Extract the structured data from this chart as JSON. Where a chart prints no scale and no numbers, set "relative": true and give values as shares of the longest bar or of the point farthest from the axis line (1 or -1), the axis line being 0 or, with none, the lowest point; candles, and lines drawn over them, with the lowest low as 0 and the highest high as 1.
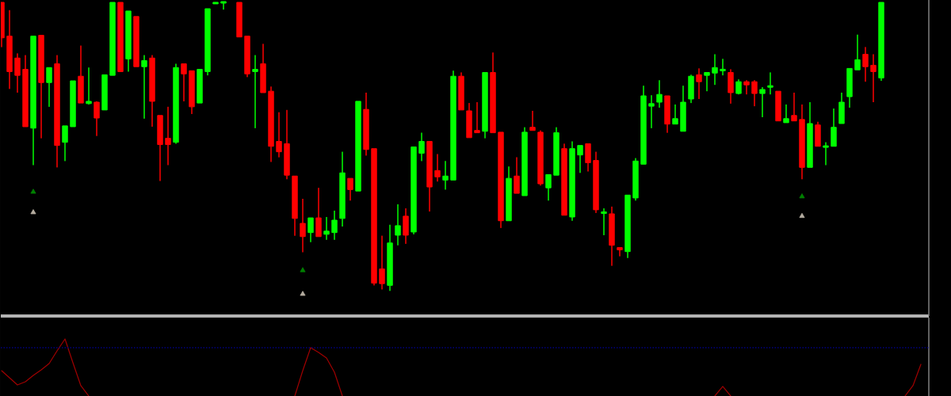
{
  "chart_data": [
    {
      "type": "candlestick",
      "relative": true,
      "categories": [
        null,
        null,
        null,
        null,
        null,
        null,
        null,
        null,
        null,
        null,
        null,
        null,
        null,
        null,
        null,
        null,
        null,
        null,
        null,
        null,
        null,
        null,
        null,
        null,
        null,
        null,
        null,
        null,
        null,
        null,
        null,
        null,
        null,
        null,
        null,
        null,
        null,
        null,
        null,
        null,
        null,
        null,
        null,
        null,
        null,
        null,
        null,
        null,
        null,
        null,
        null,
        null,
        null,
        null,
        null,
        null,
        null,
        null,
        null,
        null,
        null,
        null,
        null,
        null,
        null,
        null,
        null,
        null,
        null,
        null,
        null,
        null,
        null,
        null,
        null,
        null,
        null,
        null,
        null,
        null,
        null,
        null,
        null,
        null,
        null,
        null,
        null,
        null,
        null,
        null,
        null,
        null,
        null,
        null,
        null,
        null,
        null,
        null,
        null,
        null,
        null,
        null,
        null,
        null,
        null,
        null,
        null,
        null,
        null,
        null,
        null,
        null,
        null,
        null,
        null,
        null,
        null
      ],
      "ohlc": [
        [
          1,
          1,
          0.845,
          0.877
        ],
        [
          0.883,
          0.973,
          0.7,
          0.76
        ],
        [
          0.807,
          0.823,
          0.687,
          0.747
        ],
        [
          0.768,
          0.817,
          0.569,
          0.569
        ],
        [
          0.564,
          0.883,
          0.436,
          0.883
        ],
        [
          0.886,
          0.886,
          0.529,
          0.722
        ],
        [
          0.722,
          0.774,
          0.638,
          0.774
        ],
        [
          0.787,
          0.817,
          0.428,
          0.504
        ],
        [
          0.515,
          0.572,
          0.45,
          0.572
        ],
        [
          0.569,
          0.728,
          0.569,
          0.728
        ],
        [
          0.744,
          0.85,
          0.651,
          0.651
        ],
        [
          0.649,
          0.774,
          0.646,
          0.657
        ],
        [
          0.654,
          0.657,
          0.537,
          0.599
        ],
        [
          0.627,
          0.749,
          0.627,
          0.749
        ],
        [
          0.747,
          1,
          0.747,
          1
        ],
        [
          1,
          1,
          0.76,
          0.76
        ],
        [
          0.804,
          0.97,
          0.76,
          0.97
        ],
        [
          0.951,
          0.951,
          0.777,
          0.777
        ],
        [
          0.777,
          0.817,
          0.597,
          0.798
        ],
        [
          0.807,
          0.817,
          0.569,
          0.657
        ],
        [
          0.608,
          0.608,
          0.381,
          0.507
        ],
        [
          0.529,
          0.638,
          0.436,
          0.507
        ],
        [
          0.515,
          0.787,
          0.51,
          0.774
        ],
        [
          0.787,
          0.787,
          0.657,
          0.752
        ],
        [
          0.763,
          0.763,
          0.613,
          0.638
        ],
        [
          0.651,
          0.768,
          0.651,
          0.768
        ],
        [
          0.76,
          0.978,
          0.747,
          0.978
        ],
        [
          0.995,
          1,
          0.995,
          1
        ],
        [
          1,
          1,
          0.975,
          1
        ],
        null,
        [
          1,
          1,
          0.88,
          0.88
        ],
        [
          0.883,
          0.883,
          0.741,
          0.752
        ],
        [
          0.76,
          0.817,
          0.564,
          0.768
        ],
        [
          0.787,
          0.856,
          0.687,
          0.687
        ],
        [
          0.692,
          0.708,
          0.447,
          0.501
        ],
        [
          0.518,
          0.619,
          0.463,
          0.482
        ],
        [
          0.51,
          0.627,
          0.387,
          0.401
        ],
        [
          0.398,
          0.398,
          0.191,
          0.251
        ],
        [
          0.234,
          0.319,
          0.134,
          0.188
        ],
        [
          0.202,
          0.253,
          0.169,
          0.253
        ],
        [
          0.253,
          0.357,
          0.188,
          0.188
        ],
        [
          0.196,
          0.256,
          0.177,
          0.207
        ],
        [
          0.202,
          0.278,
          0.177,
          0.245
        ],
        [
          0.251,
          0.482,
          0.223,
          0.409
        ],
        [
          0.39,
          0.39,
          0.313,
          0.351
        ],
        [
          0.346,
          0.657,
          0.346,
          0.657
        ],
        [
          0.629,
          0.687,
          0.469,
          0.49
        ],
        [
          0.493,
          0.493,
          0.019,
          0.027
        ],
        [
          0.076,
          0.191,
          0.005,
          0.025
        ],
        [
          0.019,
          0.229,
          0,
          0.166
        ],
        [
          0.193,
          0.3,
          0.158,
          0.226
        ],
        [
          0.259,
          0.286,
          0.163,
          0.193
        ],
        [
          0.204,
          0.499,
          0.196,
          0.499
        ],
        [
          0.477,
          0.548,
          0.45,
          0.518
        ],
        [
          0.518,
          0.518,
          0.275,
          0.36
        ],
        [
          0.417,
          0.474,
          0.379,
          0.395
        ],
        [
          0.384,
          0.45,
          0.351,
          0.398
        ],
        [
          0.384,
          0.763,
          0.384,
          0.744
        ],
        [
          0.744,
          0.757,
          0.627,
          0.627
        ],
        [
          0.624,
          0.651,
          0.531,
          0.531
        ],
        [
          0.556,
          0.654,
          0.548,
          0.548
        ],
        [
          0.553,
          0.757,
          0.529,
          0.757
        ],
        [
          0.757,
          0.826,
          0.548,
          0.548
        ],
        [
          0.55,
          0.55,
          0.218,
          0.243
        ],
        [
          0.243,
          0.431,
          0.243,
          0.39
        ],
        [
          0.398,
          0.463,
          0.338,
          0.338
        ],
        [
          0.33,
          0.567,
          0.33,
          0.55
        ],
        [
          0.567,
          0.624,
          0.556,
          0.556
        ],
        [
          0.55,
          0.556,
          0.365,
          0.371
        ],
        [
          0.357,
          0.403,
          0.313,
          0.403
        ],
        [
          0.401,
          0.567,
          0.401,
          0.548
        ],
        [
          0.493,
          0.51,
          0.262,
          0.262
        ],
        [
          0.256,
          0.518,
          0.243,
          0.493
        ],
        [
          0.471,
          0.504,
          0.409,
          0.504
        ],
        [
          0.51,
          0.51,
          0.414,
          0.444
        ],
        [
          0.452,
          0.482,
          0.27,
          0.281
        ],
        [
          0.27,
          0.286,
          0.193,
          0.272
        ],
        [
          0.267,
          0.292,
          0.087,
          0.158
        ],
        [
          0.15,
          0.15,
          0.12,
          0.142
        ],
        [
          0.136,
          0.332,
          0.114,
          0.332
        ],
        [
          0.322,
          0.46,
          0.313,
          0.45
        ],
        [
          0.439,
          0.711,
          0.439,
          0.676
        ],
        [
          0.64,
          0.678,
          0.564,
          0.649
        ],
        [
          0.654,
          0.73,
          0.635,
          0.681
        ],
        [
          0.676,
          0.676,
          0.548,
          0.578
        ],
        [
          0.578,
          0.646,
          0.578,
          0.597
        ],
        [
          0.553,
          0.711,
          0.553,
          0.654
        ],
        [
          0.665,
          0.749,
          0.651,
          0.744
        ],
        [
          0.749,
          0.771,
          0.665,
          0.725
        ],
        [
          0.747,
          0.757,
          0.692,
          0.757
        ],
        [
          0.755,
          0.82,
          0.714,
          0.774
        ],
        [
          0.763,
          0.804,
          0.747,
          0.768
        ],
        [
          0.757,
          0.768,
          0.649,
          0.687
        ],
        [
          0.684,
          0.733,
          0.681,
          0.725
        ],
        [
          0.725,
          0.73,
          0.681,
          0.714
        ],
        [
          0.725,
          0.73,
          0.64,
          0.684
        ],
        [
          0.684,
          0.706,
          0.602,
          0.698
        ],
        [
          0.706,
          0.757,
          0.681,
          0.711
        ],
        [
          0.692,
          0.692,
          0.589,
          0.589
        ],
        [
          0.583,
          0.646,
          0.583,
          0.597
        ],
        [
          0.608,
          0.687,
          0.589,
          0.589
        ],
        [
          0.594,
          0.646,
          0.387,
          0.428
        ],
        [
          0.428,
          0.654,
          0.428,
          0.58
        ],
        [
          0.575,
          0.586,
          0.501,
          0.501
        ],
        [
          0.499,
          0.515,
          0.436,
          0.501
        ],
        [
          0.501,
          0.632,
          0.501,
          0.567
        ],
        [
          0.58,
          0.687,
          0.58,
          0.654
        ],
        [
          0.673,
          0.771,
          0.635,
          0.771
        ],
        [
          0.766,
          0.888,
          0.766,
          0.801
        ],
        [
          0.82,
          0.845,
          0.725,
          0.777
        ],
        [
          0.782,
          0.82,
          0.654,
          0.76
        ],
        [
          0.738,
          1,
          0.728,
          1
        ],
        null,
        null,
        null,
        null,
        null
      ],
      "colors": [
        "#ff0000",
        "#ff0000",
        "#ff0000",
        "#ff0000",
        "#00ff00",
        "#ff0000",
        "#00ff00",
        "#ff0000",
        "#00ff00",
        "#00ff00",
        "#ff0000",
        "#00ff00",
        "#ff0000",
        "#00ff00",
        "#00ff00",
        "#ff0000",
        "#00ff00",
        "#ff0000",
        "#00ff00",
        "#ff0000",
        "#ff0000",
        "#ff0000",
        "#00ff00",
        "#ff0000",
        "#ff0000",
        "#00ff00",
        "#00ff00",
        "#00ff00",
        "#00ff00",
        null,
        "#ff0000",
        "#ff0000",
        "#00ff00",
        "#ff0000",
        "#ff0000",
        "#ff0000",
        "#ff0000",
        "#ff0000",
        "#ff0000",
        "#00ff00",
        "#ff0000",
        "#00ff00",
        "#00ff00",
        "#00ff00",
        "#ff0000",
        "#00ff00",
        "#ff0000",
        "#ff0000",
        "#ff0000",
        "#00ff00",
        "#00ff00",
        "#ff0000",
        "#00ff00",
        "#00ff00",
        "#ff0000",
        "#ff0000",
        "#00ff00",
        "#00ff00",
        "#ff0000",
        "#ff0000",
        "#ff0000",
        "#00ff00",
        "#ff0000",
        "#ff0000",
        "#00ff00",
        "#ff0000",
        "#00ff00",
        "#ff0000",
        "#ff0000",
        "#00ff00",
        "#00ff00",
        "#ff0000",
        "#00ff00",
        "#00ff00",
        "#ff0000",
        "#ff0000",
        "#00ff00",
        "#ff0000",
        "#ff0000",
        "#00ff00",
        "#00ff00",
        "#00ff00",
        "#00ff00",
        "#00ff00",
        "#ff0000",
        "#00ff00",
        "#00ff00",
        "#00ff00",
        "#ff0000",
        "#00ff00",
        "#00ff00",
        "#00ff00",
        "#ff0000",
        "#00ff00",
        "#ff0000",
        "#ff0000",
        "#00ff00",
        "#00ff00",
        "#ff0000",
        "#00ff00",
        "#ff0000",
        "#ff0000",
        "#00ff00",
        "#ff0000",
        "#00ff00",
        "#00ff00",
        "#00ff00",
        "#00ff00",
        "#00ff00",
        "#ff0000",
        "#ff0000",
        "#00ff00",
        null,
        null,
        null,
        null,
        null
      ],
      "series": [
        {
          "type": "scatter",
          "color": "#008000",
          "marker": "triangle",
          "values": [
            null,
            null,
            null,
            null,
            0.343,
            null,
            null,
            null,
            null,
            null,
            null,
            null,
            null,
            null,
            null,
            null,
            null,
            null,
            null,
            null,
            null,
            null,
            null,
            null,
            null,
            null,
            null,
            null,
            null,
            null,
            null,
            null,
            null,
            null,
            null,
            null,
            null,
            null,
            0.071,
            null,
            null,
            null,
            null,
            null,
            null,
            null,
            null,
            null,
            null,
            null,
            null,
            null,
            null,
            null,
            null,
            null,
            null,
            null,
            null,
            null,
            null,
            null,
            null,
            null,
            null,
            null,
            null,
            null,
            null,
            null,
            null,
            null,
            null,
            null,
            null,
            null,
            null,
            null,
            null,
            null,
            null,
            null,
            null,
            null,
            null,
            null,
            null,
            null,
            null,
            null,
            null,
            null,
            null,
            null,
            null,
            null,
            null,
            null,
            null,
            null,
            null,
            0.327,
            null,
            null,
            null,
            null,
            null,
            null,
            null,
            null,
            null,
            null,
            null,
            null,
            null,
            null,
            null
          ]
        },
        {
          "type": "scatter",
          "color": "#b4aca0",
          "marker": "triangle",
          "values": [
            null,
            null,
            null,
            null,
            0.272,
            null,
            null,
            null,
            null,
            null,
            null,
            null,
            null,
            null,
            null,
            null,
            null,
            null,
            null,
            null,
            null,
            null,
            null,
            null,
            null,
            null,
            null,
            null,
            null,
            null,
            null,
            null,
            null,
            null,
            null,
            null,
            null,
            null,
            -0.011,
            null,
            null,
            null,
            null,
            null,
            null,
            null,
            null,
            null,
            null,
            null,
            null,
            null,
            null,
            null,
            null,
            null,
            null,
            null,
            null,
            null,
            null,
            null,
            null,
            null,
            null,
            null,
            null,
            null,
            null,
            null,
            null,
            null,
            null,
            null,
            null,
            null,
            null,
            null,
            null,
            null,
            null,
            null,
            null,
            null,
            null,
            null,
            null,
            null,
            null,
            null,
            null,
            null,
            null,
            null,
            null,
            null,
            null,
            null,
            null,
            null,
            null,
            0.259,
            null,
            null,
            null,
            null,
            null,
            null,
            null,
            null,
            null,
            null,
            null,
            null,
            null,
            null,
            null
          ]
        }
      ]
    },
    {
      "type": "line",
      "relative": true,
      "categories": [
        null,
        null,
        null,
        null,
        null,
        null,
        null,
        null,
        null,
        null,
        null,
        null,
        null,
        null,
        null,
        null,
        null,
        null,
        null,
        null,
        null,
        null,
        null,
        null,
        null,
        null,
        null,
        null,
        null,
        null,
        null,
        null,
        null,
        null,
        null,
        null,
        null,
        null,
        null,
        null,
        null,
        null,
        null,
        null,
        null,
        null,
        null,
        null,
        null,
        null,
        null,
        null,
        null,
        null,
        null,
        null,
        null,
        null,
        null,
        null,
        null,
        null,
        null,
        null,
        null,
        null,
        null,
        null,
        null,
        null,
        null,
        null,
        null,
        null,
        null,
        null,
        null,
        null,
        null,
        null,
        null,
        null,
        null,
        null,
        null,
        null,
        null,
        null,
        null,
        null,
        null,
        null,
        null,
        null,
        null,
        null,
        null,
        null,
        null,
        null,
        null,
        null,
        null,
        null,
        null,
        null,
        null,
        null,
        null,
        null,
        null,
        null,
        null,
        null,
        null,
        null,
        null
      ],
      "series": [
        {
          "type": "line",
          "color": "#a00000",
          "values": [
            0.444,
            0.32,
            0.194,
            0.25,
            0.361,
            0.458,
            0.569,
            0.792,
            1,
            0.583,
            0.181,
            0,
            null,
            null,
            null,
            null,
            null,
            null,
            null,
            null,
            null,
            null,
            null,
            null,
            null,
            null,
            null,
            null,
            null,
            null,
            null,
            null,
            null,
            null,
            null,
            null,
            null,
            0,
            0.444,
            0.847,
            0.764,
            0.667,
            0.417,
            0,
            null,
            null,
            null,
            null,
            null,
            null,
            null,
            null,
            null,
            null,
            null,
            null,
            null,
            null,
            null,
            null,
            null,
            null,
            null,
            null,
            null,
            null,
            null,
            null,
            null,
            null,
            null,
            null,
            null,
            null,
            null,
            null,
            null,
            null,
            null,
            null,
            null,
            null,
            null,
            null,
            null,
            null,
            null,
            null,
            null,
            null,
            0,
            0.167,
            0,
            null,
            null,
            null,
            null,
            null,
            null,
            null,
            null,
            null,
            null,
            null,
            null,
            null,
            null,
            null,
            null,
            null,
            null,
            null,
            null,
            null,
            0,
            0.181,
            0.556
          ]
        }
      ],
      "ref_lines": [
        {
          "axis": "y",
          "value": 0.847,
          "color": "#000080",
          "line_style": "dotted"
        }
      ]
    }
  ]
}
